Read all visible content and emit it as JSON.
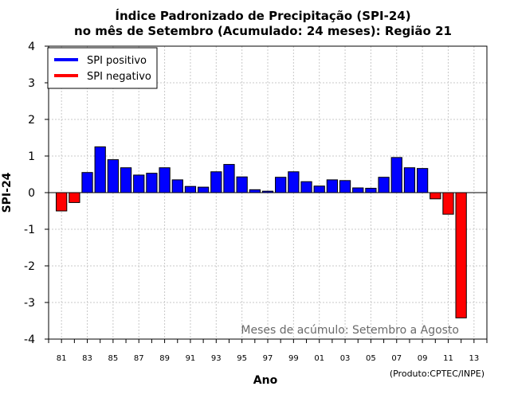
{
  "chart_data": {
    "type": "bar",
    "title_line1": "Índice Padronizado de Precipitação (SPI-24)",
    "title_line2": "no mês de Setembro (Acumulado: 24 meses): Região 21",
    "xlabel": "Ano",
    "ylabel": "SPI-24",
    "ylim": [
      -4,
      4
    ],
    "yticks": [
      "-4",
      "-3",
      "-2",
      "-1",
      "0",
      "1",
      "2",
      "3",
      "4"
    ],
    "ytick_values": [
      -4,
      -3,
      -2,
      -1,
      0,
      1,
      2,
      3,
      4
    ],
    "year_range": [
      1980,
      2014
    ],
    "xtick_years": [
      1981,
      1983,
      1985,
      1987,
      1989,
      1991,
      1993,
      1995,
      1997,
      1999,
      2001,
      2003,
      2005,
      2007,
      2009,
      2011,
      2013
    ],
    "xtick_labels": [
      "81",
      "83",
      "85",
      "87",
      "89",
      "91",
      "93",
      "95",
      "97",
      "99",
      "01",
      "03",
      "05",
      "07",
      "09",
      "11",
      "13"
    ],
    "years": [
      1981,
      1982,
      1983,
      1984,
      1985,
      1986,
      1987,
      1988,
      1989,
      1990,
      1991,
      1992,
      1993,
      1994,
      1995,
      1996,
      1997,
      1998,
      1999,
      2000,
      2001,
      2002,
      2003,
      2004,
      2005,
      2006,
      2007,
      2008,
      2009,
      2010,
      2011,
      2012
    ],
    "values": [
      -0.5,
      -0.27,
      0.55,
      1.25,
      0.9,
      0.68,
      0.48,
      0.53,
      0.68,
      0.35,
      0.17,
      0.15,
      0.57,
      0.77,
      0.43,
      0.08,
      0.04,
      0.42,
      0.57,
      0.3,
      0.18,
      0.35,
      0.33,
      0.13,
      0.12,
      0.42,
      0.96,
      0.68,
      0.66,
      -0.17,
      -0.59,
      -3.42
    ],
    "legend": [
      {
        "label": "SPI positivo",
        "color": "#0000ff"
      },
      {
        "label": "SPI negativo",
        "color": "#ff0000"
      }
    ],
    "legend_position": "top-left",
    "annotation": "Meses de acúmulo: Setembro a Agosto",
    "credit": "(Produto:CPTEC/INPE)",
    "grid": true,
    "colors": {
      "positive": "#0000ff",
      "negative": "#ff0000",
      "grid": "#c8c8c8",
      "annotation": "#6a6a6a"
    }
  }
}
